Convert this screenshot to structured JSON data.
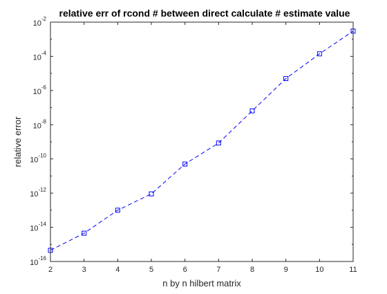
{
  "chart_data": {
    "type": "line",
    "title": "relative err of rcond # between direct calculate # estimate value",
    "xlabel": "n by n hilbert matrix",
    "ylabel": "relative error",
    "xscale": "linear",
    "yscale": "log",
    "xlim": [
      2,
      11
    ],
    "ylim": [
      1e-16,
      0.01
    ],
    "xticks": [
      2,
      3,
      4,
      5,
      6,
      7,
      8,
      9,
      10,
      11
    ],
    "yticks": [
      {
        "base": "10",
        "exp": "-16"
      },
      {
        "base": "10",
        "exp": "-14"
      },
      {
        "base": "10",
        "exp": "-12"
      },
      {
        "base": "10",
        "exp": "-10"
      },
      {
        "base": "10",
        "exp": "-8"
      },
      {
        "base": "10",
        "exp": "-6"
      },
      {
        "base": "10",
        "exp": "-4"
      },
      {
        "base": "10",
        "exp": "-2"
      }
    ],
    "grid": false,
    "series": [
      {
        "line_style": "dashed",
        "marker": "square",
        "color": "#0000ff",
        "x": [
          2,
          3,
          4,
          5,
          6,
          7,
          8,
          9,
          10,
          11
        ],
        "y": [
          4.5e-16,
          4.5e-15,
          1e-13,
          9e-13,
          5e-11,
          8.5e-10,
          6.5e-08,
          5e-06,
          0.00014,
          0.003
        ]
      }
    ]
  }
}
